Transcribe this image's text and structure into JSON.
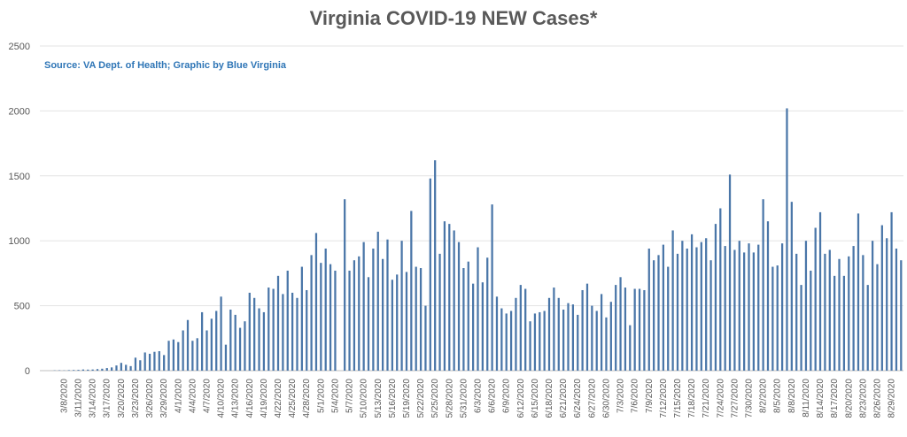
{
  "chart_data": {
    "type": "bar",
    "title": "Virginia COVID-19 NEW Cases*",
    "annotation": "Source: VA Dept. of Health; Graphic by Blue Virginia",
    "xlabel": "",
    "ylabel": "",
    "ylim": [
      0,
      2500
    ],
    "yticks": [
      0,
      500,
      1000,
      1500,
      2000,
      2500
    ],
    "grid": true,
    "bar_color": "#4a76a8",
    "start_date": "3/6/2020",
    "end_date": "9/1/2020",
    "x_tick_labels": [
      "3/8/2020",
      "3/11/2020",
      "3/14/2020",
      "3/17/2020",
      "3/20/2020",
      "3/23/2020",
      "3/26/2020",
      "3/29/2020",
      "4/1/2020",
      "4/4/2020",
      "4/7/2020",
      "4/10/2020",
      "4/13/2020",
      "4/16/2020",
      "4/19/2020",
      "4/22/2020",
      "4/25/2020",
      "4/28/2020",
      "5/1/2020",
      "5/4/2020",
      "5/7/2020",
      "5/10/2020",
      "5/13/2020",
      "5/16/2020",
      "5/19/2020",
      "5/22/2020",
      "5/25/2020",
      "5/28/2020",
      "5/31/2020",
      "6/3/2020",
      "6/6/2020",
      "6/9/2020",
      "6/12/2020",
      "6/15/2020",
      "6/18/2020",
      "6/21/2020",
      "6/24/2020",
      "6/27/2020",
      "6/30/2020",
      "7/3/2020",
      "7/6/2020",
      "7/9/2020",
      "7/12/2020",
      "7/15/2020",
      "7/18/2020",
      "7/21/2020",
      "7/24/2020",
      "7/27/2020",
      "7/30/2020",
      "8/2/2020",
      "8/5/2020",
      "8/8/2020",
      "8/11/2020",
      "8/14/2020",
      "8/17/2020",
      "8/20/2020",
      "8/23/2020",
      "8/26/2020",
      "8/29/2020"
    ],
    "values": [
      2,
      3,
      2,
      4,
      5,
      6,
      9,
      8,
      9,
      12,
      15,
      20,
      25,
      40,
      60,
      45,
      35,
      100,
      80,
      140,
      130,
      145,
      150,
      120,
      230,
      240,
      220,
      310,
      390,
      230,
      250,
      450,
      310,
      400,
      460,
      570,
      200,
      470,
      430,
      330,
      380,
      600,
      560,
      480,
      450,
      640,
      630,
      730,
      590,
      770,
      600,
      560,
      800,
      620,
      890,
      1060,
      830,
      940,
      820,
      770,
      0,
      1320,
      770,
      850,
      880,
      990,
      720,
      940,
      1070,
      860,
      1010,
      700,
      740,
      1000,
      760,
      1230,
      800,
      790,
      500,
      1480,
      1620,
      900,
      1150,
      1130,
      1080,
      990,
      790,
      840,
      670,
      950,
      680,
      870,
      1280,
      570,
      480,
      440,
      460,
      560,
      660,
      630,
      380,
      440,
      450,
      460,
      560,
      640,
      560,
      470,
      520,
      510,
      430,
      620,
      670,
      500,
      460,
      590,
      410,
      530,
      660,
      720,
      640,
      350,
      630,
      630,
      620,
      940,
      850,
      890,
      970,
      800,
      1080,
      900,
      1000,
      940,
      1050,
      950,
      990,
      1020,
      850,
      1130,
      1250,
      960,
      1510,
      930,
      1000,
      910,
      980,
      910,
      970,
      1320,
      1150,
      800,
      810,
      980,
      2020,
      1300,
      900,
      660,
      1000,
      770,
      1100,
      1220,
      900,
      930,
      730,
      860,
      730,
      880,
      960,
      1210,
      890,
      660,
      1000,
      820,
      1120,
      1020,
      1220,
      940,
      850
    ]
  }
}
